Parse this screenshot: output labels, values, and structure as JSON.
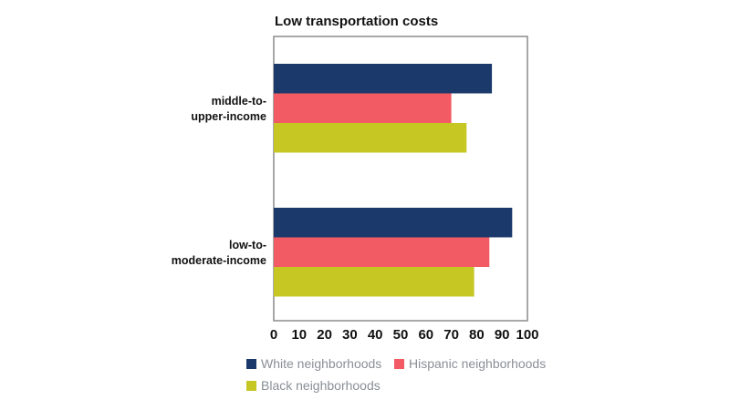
{
  "chart_data": {
    "type": "bar",
    "orientation": "horizontal",
    "title": "Low transportation costs",
    "xlabel": "",
    "ylabel": "",
    "categories": [
      [
        "middle-to-",
        "upper-income"
      ],
      [
        "low-to-",
        "moderate-income"
      ]
    ],
    "series": [
      {
        "name": "White neighborhoods",
        "color": "#1b3a6b",
        "values": [
          86,
          94
        ]
      },
      {
        "name": "Hispanic neighborhoods",
        "color": "#f25a64",
        "values": [
          70,
          85
        ]
      },
      {
        "name": "Black neighborhoods",
        "color": "#c6c723",
        "values": [
          76,
          79
        ]
      }
    ],
    "xlim": [
      0,
      100
    ],
    "ticks": [
      "0",
      "10",
      "20",
      "30",
      "40",
      "50",
      "60",
      "70",
      "80",
      "90",
      "100"
    ],
    "grid": false,
    "legend_position": "bottom"
  }
}
